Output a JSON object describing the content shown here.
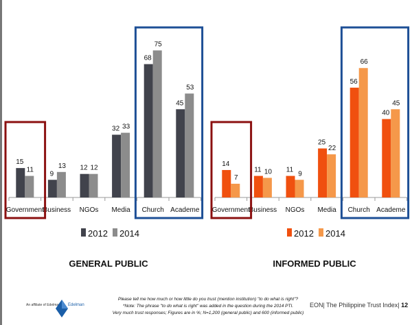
{
  "chart_data": [
    {
      "type": "bar",
      "title": "GENERAL PUBLIC",
      "categories": [
        "Government",
        "Business",
        "NGOs",
        "Media",
        "Church",
        "Academe"
      ],
      "series": [
        {
          "name": "2012",
          "values": [
            15,
            9,
            12,
            32,
            68,
            45
          ],
          "color": "#41434c"
        },
        {
          "name": "2014",
          "values": [
            11,
            13,
            12,
            33,
            75,
            53
          ],
          "color": "#8c8c8c"
        }
      ],
      "ylim": [
        0,
        80
      ],
      "highlight_red": [
        "Government"
      ],
      "highlight_blue": [
        "Church",
        "Academe"
      ],
      "legend": "bottom"
    },
    {
      "type": "bar",
      "title": "INFORMED PUBLIC",
      "categories": [
        "Government",
        "Business",
        "NGOs",
        "Media",
        "Church",
        "Academe"
      ],
      "series": [
        {
          "name": "2012",
          "values": [
            14,
            11,
            11,
            25,
            56,
            40
          ],
          "color": "#f0500f"
        },
        {
          "name": "2014",
          "values": [
            7,
            10,
            9,
            22,
            66,
            45
          ],
          "color": "#f5984a"
        }
      ],
      "ylim": [
        0,
        80
      ],
      "highlight_red": [
        "Government"
      ],
      "highlight_blue": [
        "Church",
        "Academe"
      ],
      "legend": "bottom"
    }
  ],
  "footer": {
    "affiliate": "An affiliate of Edelman",
    "logo_text": "Edelman",
    "note1": "Please tell me how much or how little do you trust (mention institution) \"to do what is right\"?",
    "note2": "*Note: The phrase \"to do what is right\" was added in the question during the 2014 PTI.",
    "note3": "Very much trust responses;  Figures are in %; N=1,200 (general public) and 600 (informed public)",
    "page_label": "EON| The Philippine Trust Index|",
    "page_number": "12"
  },
  "colors": {
    "red_box": "#8b1010",
    "blue_box": "#1d4f96"
  }
}
